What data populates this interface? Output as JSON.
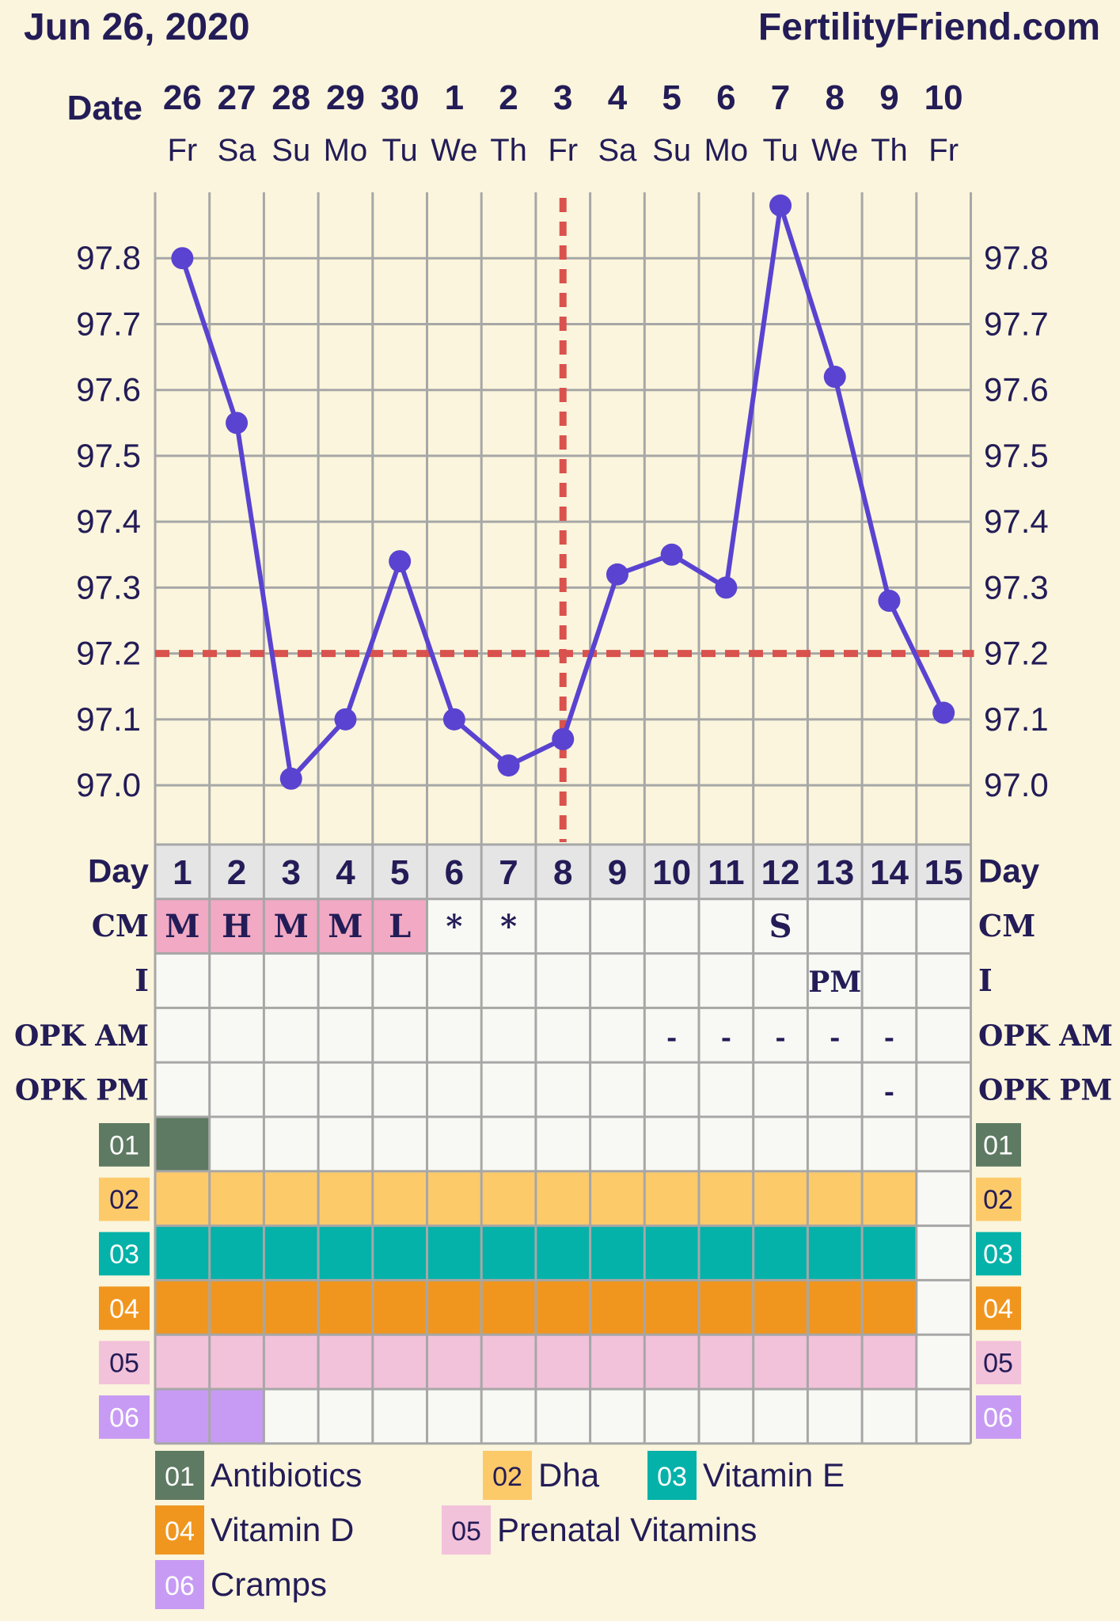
{
  "header": {
    "date": "Jun 26, 2020",
    "site": "FertilityFriend.com"
  },
  "labels": {
    "date": "Date",
    "day": "Day",
    "cm": "CM",
    "i": "I",
    "opk_am": "OPK AM",
    "opk_pm": "OPK PM"
  },
  "colors": {
    "line": "#5a43d0",
    "coverline": "#d9524d",
    "period": "#f1a9c4",
    "c01": "#5e7a62",
    "c02": "#fdca6a",
    "c03": "#04b2a9",
    "c04": "#f0961f",
    "c05": "#f2c1da",
    "c06": "#c79bf4"
  },
  "chart_data": {
    "type": "line",
    "dates": [
      "26",
      "27",
      "28",
      "29",
      "30",
      "1",
      "2",
      "3",
      "4",
      "5",
      "6",
      "7",
      "8",
      "9",
      "10"
    ],
    "weekdays": [
      "Fr",
      "Sa",
      "Su",
      "Mo",
      "Tu",
      "We",
      "Th",
      "Fr",
      "Sa",
      "Su",
      "Mo",
      "Tu",
      "We",
      "Th",
      "Fr"
    ],
    "cycle_days": [
      "1",
      "2",
      "3",
      "4",
      "5",
      "6",
      "7",
      "8",
      "9",
      "10",
      "11",
      "12",
      "13",
      "14",
      "15"
    ],
    "temperatures": [
      97.8,
      97.55,
      97.01,
      97.1,
      97.34,
      97.1,
      97.03,
      97.07,
      97.32,
      97.35,
      97.3,
      97.88,
      97.62,
      97.28,
      97.11
    ],
    "y_ticks": [
      "97.8",
      "97.7",
      "97.6",
      "97.5",
      "97.4",
      "97.3",
      "97.2",
      "97.1",
      "97.0"
    ],
    "ylim": [
      96.91,
      97.9
    ],
    "coverline": 97.2,
    "ovulation_day_index": 7,
    "grid": true,
    "rows": {
      "cm": [
        "M",
        "H",
        "M",
        "M",
        "L",
        "*",
        "*",
        "",
        "",
        "",
        "",
        "S",
        "",
        "",
        ""
      ],
      "cm_period": [
        true,
        true,
        true,
        true,
        true,
        false,
        false,
        false,
        false,
        false,
        false,
        false,
        false,
        false,
        false
      ],
      "intercourse": [
        "",
        "",
        "",
        "",
        "",
        "",
        "",
        "",
        "",
        "",
        "",
        "",
        "PM",
        "",
        ""
      ],
      "opk_am": [
        "",
        "",
        "",
        "",
        "",
        "",
        "",
        "",
        "",
        "-",
        "-",
        "-",
        "-",
        "-",
        ""
      ],
      "opk_pm": [
        "",
        "",
        "",
        "",
        "",
        "",
        "",
        "",
        "",
        "",
        "",
        "",
        "",
        "-",
        ""
      ]
    },
    "custom_rows": [
      {
        "code": "01",
        "label": "Antibiotics",
        "color": "#5e7a62",
        "days": [
          1
        ]
      },
      {
        "code": "02",
        "label": "Dha",
        "color": "#fdca6a",
        "days": [
          1,
          2,
          3,
          4,
          5,
          6,
          7,
          8,
          9,
          10,
          11,
          12,
          13,
          14
        ]
      },
      {
        "code": "03",
        "label": "Vitamin E",
        "color": "#04b2a9",
        "days": [
          1,
          2,
          3,
          4,
          5,
          6,
          7,
          8,
          9,
          10,
          11,
          12,
          13,
          14
        ]
      },
      {
        "code": "04",
        "label": "Vitamin D",
        "color": "#f0961f",
        "days": [
          1,
          2,
          3,
          4,
          5,
          6,
          7,
          8,
          9,
          10,
          11,
          12,
          13,
          14
        ]
      },
      {
        "code": "05",
        "label": "Prenatal Vitamins",
        "color": "#f2c1da",
        "days": [
          1,
          2,
          3,
          4,
          5,
          6,
          7,
          8,
          9,
          10,
          11,
          12,
          13,
          14
        ]
      },
      {
        "code": "06",
        "label": "Cramps",
        "color": "#c79bf4",
        "days": [
          1,
          2
        ]
      }
    ]
  }
}
